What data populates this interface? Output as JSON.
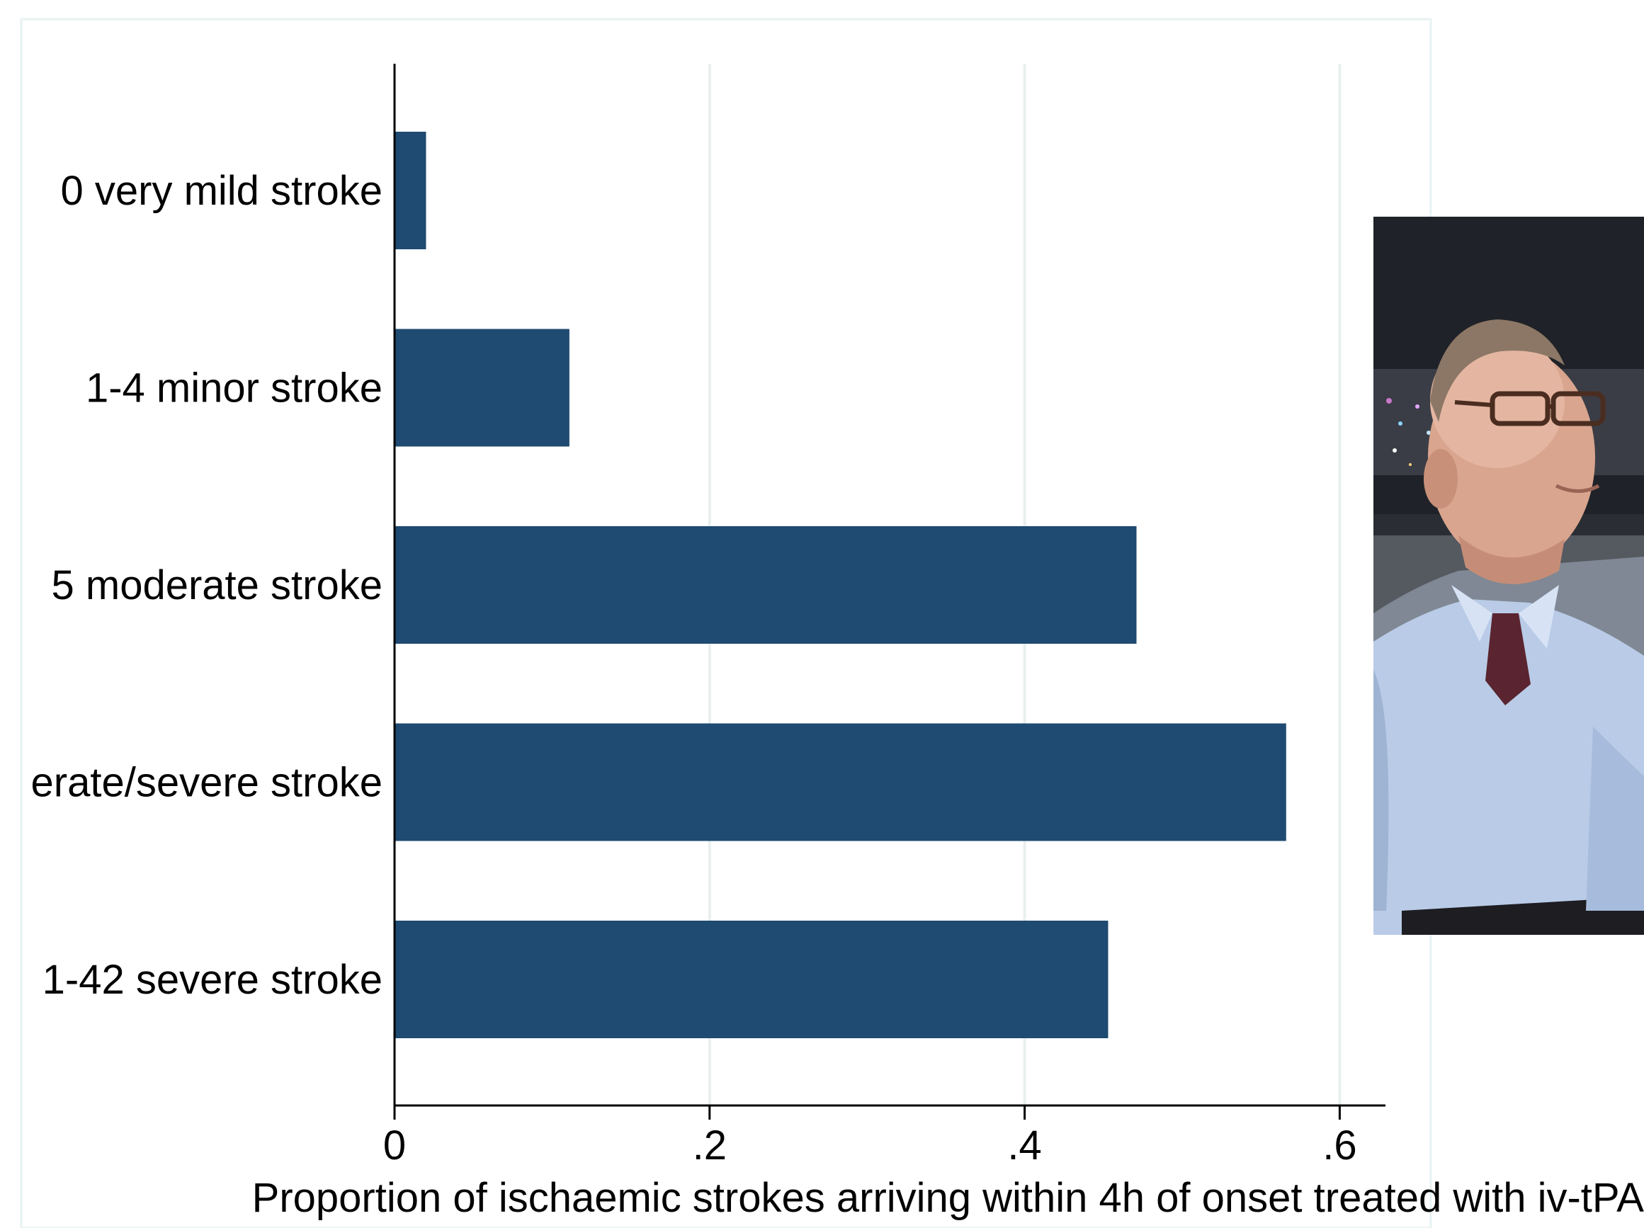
{
  "chart_data": {
    "type": "bar",
    "orientation": "horizontal",
    "categories": [
      "0 very mild stroke",
      "1-4 minor stroke",
      "5 moderate stroke",
      "erate/severe stroke",
      "1-42 severe stroke"
    ],
    "values": [
      0.02,
      0.111,
      0.471,
      0.566,
      0.453
    ],
    "xlabel": "Proportion of ischaemic strokes arriving within 4h of onset treated with iv-tPA",
    "ylabel": "",
    "xlim": [
      0,
      0.6
    ],
    "xticks": [
      0,
      0.2,
      0.4,
      0.6
    ],
    "xtick_labels": [
      "0",
      ".2",
      ".4",
      ".6"
    ],
    "grid": true,
    "bar_color": "#1f4a71",
    "grid_color": "#e9f0f0"
  },
  "photo": {
    "subject": "man-with-glasses-portrait",
    "colors": {
      "background": "#2b2f35",
      "skin": "#d9a58e",
      "shirt": "#b9cbe6",
      "tie": "#5a2530"
    }
  }
}
